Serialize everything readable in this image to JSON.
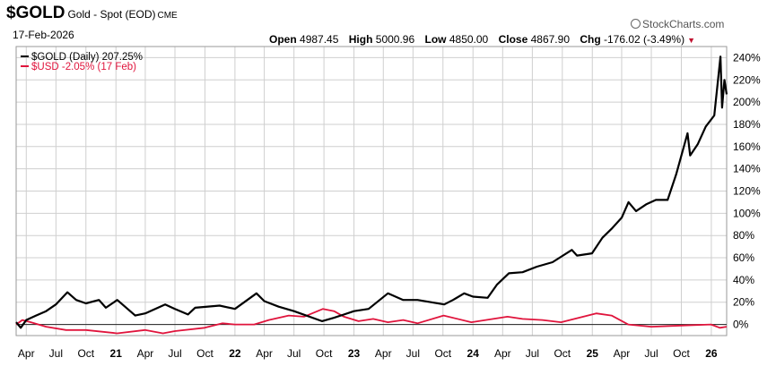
{
  "header": {
    "symbol": "$GOLD",
    "description": "Gold - Spot (EOD)",
    "exchange": "CME",
    "date": "17-Feb-2026",
    "brand": "StockCharts.com",
    "ohlc": {
      "open_label": "Open",
      "open": "4987.45",
      "high_label": "High",
      "high": "5000.96",
      "low_label": "Low",
      "low": "4850.00",
      "close_label": "Close",
      "close": "4867.90",
      "chg_label": "Chg",
      "chg": "-176.02 (-3.49%)"
    },
    "down_arrow_icon": "triangle-down"
  },
  "chart_data": {
    "type": "line",
    "x_axis": "date",
    "x_range": [
      "2020-03-01",
      "2026-02-17"
    ],
    "x_tick_labels": [
      {
        "date": "2020-04-01",
        "label": "Apr"
      },
      {
        "date": "2020-07-01",
        "label": "Jul"
      },
      {
        "date": "2020-10-01",
        "label": "Oct"
      },
      {
        "date": "2021-01-01",
        "label": "21"
      },
      {
        "date": "2021-04-01",
        "label": "Apr"
      },
      {
        "date": "2021-07-01",
        "label": "Jul"
      },
      {
        "date": "2021-10-01",
        "label": "Oct"
      },
      {
        "date": "2022-01-01",
        "label": "22"
      },
      {
        "date": "2022-04-01",
        "label": "Apr"
      },
      {
        "date": "2022-07-01",
        "label": "Jul"
      },
      {
        "date": "2022-10-01",
        "label": "Oct"
      },
      {
        "date": "2023-01-01",
        "label": "23"
      },
      {
        "date": "2023-04-01",
        "label": "Apr"
      },
      {
        "date": "2023-07-01",
        "label": "Jul"
      },
      {
        "date": "2023-10-01",
        "label": "Oct"
      },
      {
        "date": "2024-01-01",
        "label": "24"
      },
      {
        "date": "2024-04-01",
        "label": "Apr"
      },
      {
        "date": "2024-07-01",
        "label": "Jul"
      },
      {
        "date": "2024-10-01",
        "label": "Oct"
      },
      {
        "date": "2025-01-01",
        "label": "25"
      },
      {
        "date": "2025-04-01",
        "label": "Apr"
      },
      {
        "date": "2025-07-01",
        "label": "Jul"
      },
      {
        "date": "2025-10-01",
        "label": "Oct"
      },
      {
        "date": "2026-01-01",
        "label": "26"
      }
    ],
    "y_ticks": [
      0,
      20,
      40,
      60,
      80,
      100,
      120,
      140,
      160,
      180,
      200,
      220,
      240
    ],
    "y_tick_labels": [
      "0%",
      "20%",
      "40%",
      "60%",
      "80%",
      "100%",
      "120%",
      "140%",
      "160%",
      "180%",
      "200%",
      "220%",
      "240%"
    ],
    "ylim": [
      -10,
      250
    ],
    "y_axis_side": "right",
    "grid": true,
    "legend_position": "top-left",
    "zero_line": true,
    "series": [
      {
        "name": "$GOLD (Daily) 207.25%",
        "color": "#000000",
        "points": [
          [
            "2020-03-01",
            2
          ],
          [
            "2020-03-15",
            -3
          ],
          [
            "2020-04-01",
            4
          ],
          [
            "2020-05-01",
            8
          ],
          [
            "2020-06-01",
            12
          ],
          [
            "2020-07-01",
            18
          ],
          [
            "2020-08-05",
            29
          ],
          [
            "2020-09-01",
            22
          ],
          [
            "2020-10-01",
            19
          ],
          [
            "2020-11-10",
            22
          ],
          [
            "2020-12-01",
            15
          ],
          [
            "2021-01-05",
            22
          ],
          [
            "2021-03-01",
            8
          ],
          [
            "2021-04-01",
            10
          ],
          [
            "2021-06-01",
            18
          ],
          [
            "2021-07-01",
            14
          ],
          [
            "2021-08-10",
            9
          ],
          [
            "2021-09-01",
            15
          ],
          [
            "2021-11-15",
            17
          ],
          [
            "2022-01-01",
            14
          ],
          [
            "2022-03-08",
            28
          ],
          [
            "2022-04-01",
            21
          ],
          [
            "2022-05-15",
            16
          ],
          [
            "2022-07-01",
            12
          ],
          [
            "2022-09-25",
            3
          ],
          [
            "2022-11-01",
            6
          ],
          [
            "2023-01-01",
            12
          ],
          [
            "2023-02-15",
            14
          ],
          [
            "2023-04-15",
            28
          ],
          [
            "2023-06-01",
            22
          ],
          [
            "2023-07-15",
            22
          ],
          [
            "2023-10-05",
            18
          ],
          [
            "2023-11-01",
            22
          ],
          [
            "2023-12-05",
            28
          ],
          [
            "2024-01-01",
            25
          ],
          [
            "2024-02-15",
            24
          ],
          [
            "2024-03-15",
            36
          ],
          [
            "2024-04-20",
            46
          ],
          [
            "2024-06-01",
            47
          ],
          [
            "2024-07-15",
            52
          ],
          [
            "2024-09-01",
            56
          ],
          [
            "2024-10-30",
            67
          ],
          [
            "2024-11-15",
            62
          ],
          [
            "2024-12-31",
            64
          ],
          [
            "2025-02-01",
            78
          ],
          [
            "2025-03-01",
            86
          ],
          [
            "2025-04-01",
            96
          ],
          [
            "2025-04-22",
            110
          ],
          [
            "2025-05-15",
            102
          ],
          [
            "2025-06-15",
            108
          ],
          [
            "2025-07-15",
            112
          ],
          [
            "2025-08-20",
            112
          ],
          [
            "2025-09-15",
            135
          ],
          [
            "2025-10-20",
            172
          ],
          [
            "2025-10-28",
            152
          ],
          [
            "2025-11-20",
            162
          ],
          [
            "2025-12-15",
            178
          ],
          [
            "2026-01-10",
            188
          ],
          [
            "2026-01-29",
            241
          ],
          [
            "2026-02-03",
            195
          ],
          [
            "2026-02-10",
            220
          ],
          [
            "2026-02-17",
            207
          ]
        ]
      },
      {
        "name": "$USD -2.05% (17 Feb)",
        "color": "#e0143c",
        "points": [
          [
            "2020-03-01",
            0
          ],
          [
            "2020-03-20",
            4
          ],
          [
            "2020-04-15",
            2
          ],
          [
            "2020-06-01",
            -2
          ],
          [
            "2020-08-01",
            -5
          ],
          [
            "2020-10-01",
            -5
          ],
          [
            "2021-01-05",
            -8
          ],
          [
            "2021-03-31",
            -5
          ],
          [
            "2021-05-25",
            -8
          ],
          [
            "2021-07-01",
            -6
          ],
          [
            "2021-09-30",
            -3
          ],
          [
            "2021-11-24",
            1
          ],
          [
            "2022-01-01",
            0
          ],
          [
            "2022-03-01",
            0
          ],
          [
            "2022-04-15",
            4
          ],
          [
            "2022-06-15",
            8
          ],
          [
            "2022-08-01",
            7
          ],
          [
            "2022-09-28",
            14
          ],
          [
            "2022-11-01",
            12
          ],
          [
            "2022-12-01",
            7
          ],
          [
            "2023-01-15",
            3
          ],
          [
            "2023-03-01",
            5
          ],
          [
            "2023-04-15",
            2
          ],
          [
            "2023-06-01",
            4
          ],
          [
            "2023-07-15",
            1
          ],
          [
            "2023-10-03",
            8
          ],
          [
            "2023-12-27",
            2
          ],
          [
            "2024-04-16",
            7
          ],
          [
            "2024-06-01",
            5
          ],
          [
            "2024-08-01",
            4
          ],
          [
            "2024-09-27",
            2
          ],
          [
            "2025-01-13",
            10
          ],
          [
            "2025-03-01",
            8
          ],
          [
            "2025-04-21",
            0
          ],
          [
            "2025-07-01",
            -2
          ],
          [
            "2025-10-01",
            -1
          ],
          [
            "2025-12-31",
            0
          ],
          [
            "2026-01-27",
            -3
          ],
          [
            "2026-02-17",
            -2
          ]
        ]
      }
    ]
  }
}
